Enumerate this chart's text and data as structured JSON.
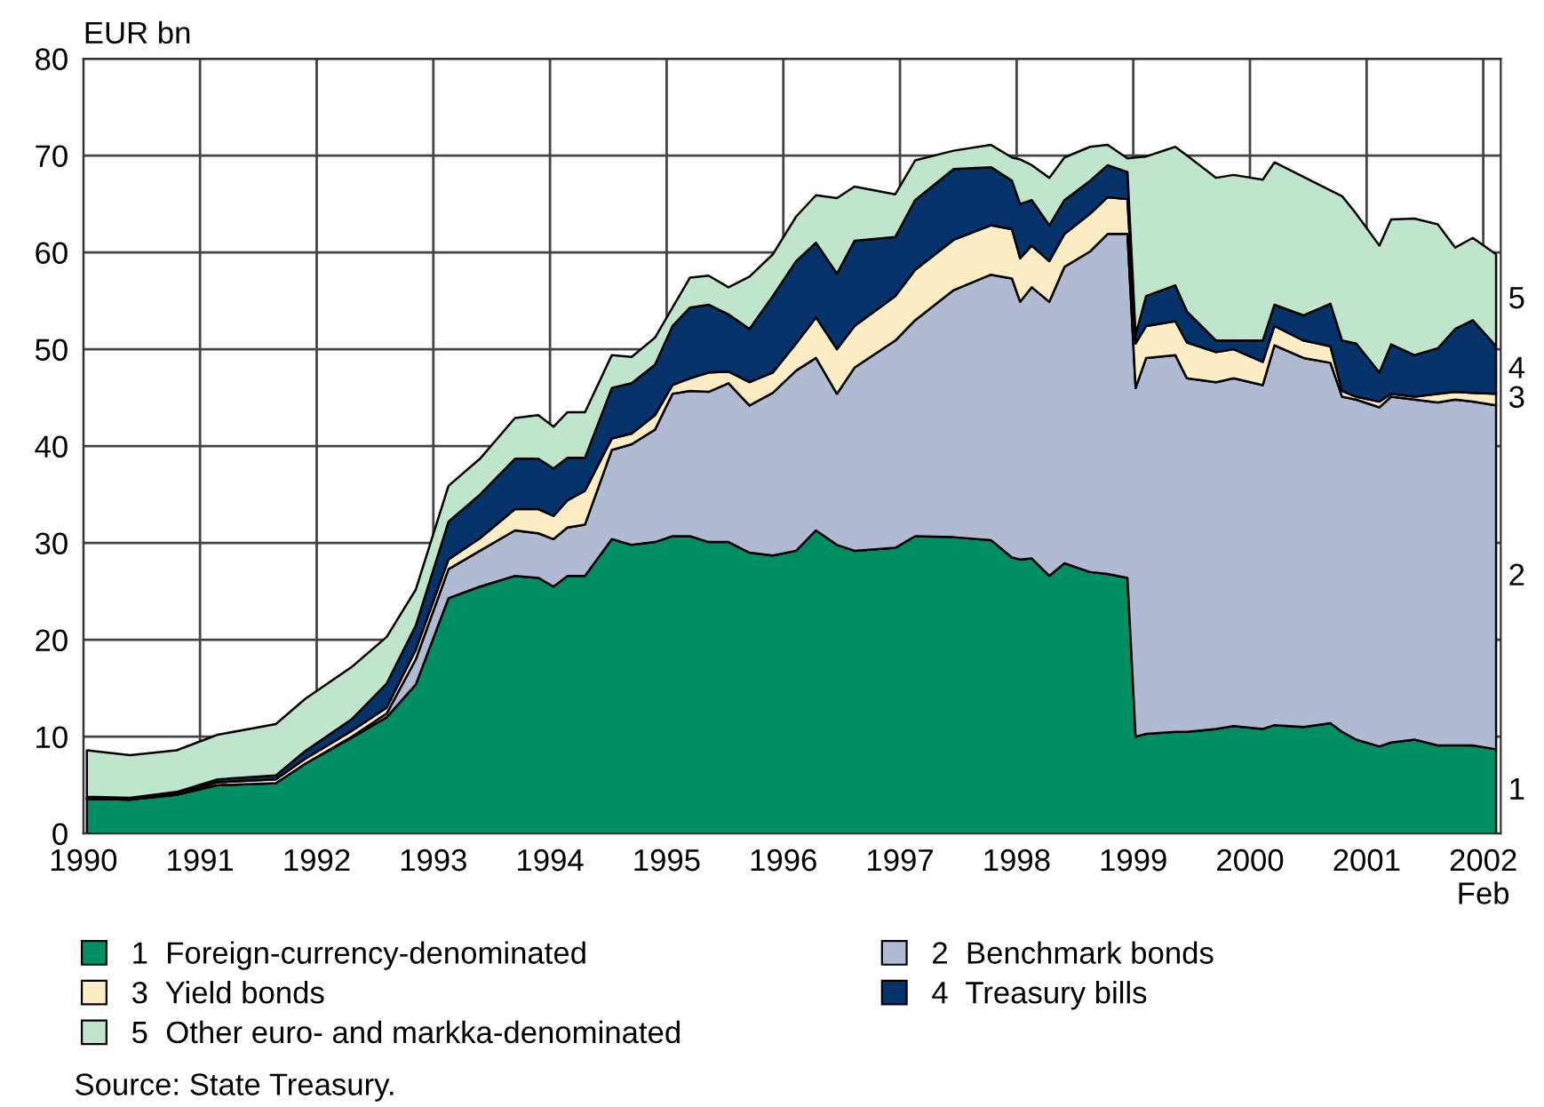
{
  "chart_data": {
    "type": "area",
    "stacked": true,
    "ylabel": "EUR bn",
    "x": [
      1990.03,
      1990.4,
      1990.8,
      1991.15,
      1991.65,
      1991.9,
      1992.3,
      1992.6,
      1992.85,
      1993.13,
      1993.4,
      1993.7,
      1993.9,
      1994.03,
      1994.15,
      1994.3,
      1994.53,
      1994.7,
      1994.9,
      1995.05,
      1995.2,
      1995.36,
      1995.53,
      1995.71,
      1995.91,
      1996.11,
      1996.28,
      1996.46,
      1996.61,
      1996.96,
      1997.13,
      1997.46,
      1997.78,
      1997.96,
      1998.03,
      1998.13,
      1998.28,
      1998.41,
      1998.63,
      1998.78,
      1998.95,
      1999.02,
      1999.11,
      1999.36,
      1999.46,
      1999.71,
      1999.86,
      2000.11,
      2000.21,
      2000.46,
      2000.69,
      2000.79,
      2000.91,
      2001.11,
      2001.21,
      2001.41,
      2001.61,
      2001.76,
      2001.91,
      2002.11
    ],
    "series": [
      {
        "name": "1  Foreign-currency-denominated",
        "color": "#008f62",
        "values": [
          3.6,
          3.5,
          4.0,
          5.0,
          5.2,
          7.2,
          9.9,
          12.0,
          15.4,
          24.3,
          25.5,
          26.6,
          26.4,
          25.5,
          26.6,
          26.6,
          30.4,
          29.8,
          30.1,
          30.7,
          30.7,
          30.1,
          30.1,
          29.0,
          28.7,
          29.2,
          31.3,
          29.8,
          29.2,
          29.5,
          30.7,
          30.6,
          30.3,
          28.5,
          28.3,
          28.4,
          26.6,
          27.9,
          27.0,
          26.8,
          26.4,
          10.0,
          10.3,
          10.5,
          10.5,
          10.8,
          11.1,
          10.8,
          11.2,
          11.0,
          11.4,
          10.5,
          9.7,
          9.0,
          9.4,
          9.7,
          9.1,
          9.1,
          9.1,
          8.7
        ]
      },
      {
        "name": "2  Benchmark bonds",
        "color": "#b1bad3",
        "values": [
          0,
          0,
          0,
          0,
          0,
          0,
          0.1,
          0.4,
          2.6,
          3.0,
          3.7,
          4.7,
          4.6,
          4.9,
          5.0,
          5.3,
          9.2,
          10.4,
          11.6,
          14.7,
          15.0,
          15.5,
          16.4,
          15.2,
          16.8,
          18.6,
          17.8,
          15.6,
          18.9,
          21.4,
          22.3,
          25.5,
          27.4,
          28.8,
          26.6,
          28.0,
          28.3,
          30.6,
          33.1,
          35.1,
          35.5,
          36.0,
          38.8,
          38.9,
          36.5,
          35.8,
          35.9,
          35.5,
          39.2,
          38.1,
          37.2,
          34.6,
          35.1,
          35.0,
          35.7,
          35.1,
          35.4,
          35.7,
          35.5,
          35.5
        ]
      },
      {
        "name": "3  Yield bonds",
        "color": "#fdedc5",
        "values": [
          0,
          0,
          0.1,
          0.3,
          0.4,
          0.5,
          0.6,
          0.6,
          1.0,
          1.0,
          1.3,
          2.2,
          2.5,
          2.4,
          2.8,
          3.5,
          1.2,
          1.1,
          1.5,
          0.9,
          1.3,
          2.0,
          1.2,
          2.4,
          2.1,
          2.8,
          4.2,
          4.6,
          4.3,
          4.6,
          5.2,
          5.2,
          5.1,
          5.1,
          4.5,
          4.3,
          4.2,
          3.4,
          3.9,
          3.8,
          3.6,
          4.6,
          3.3,
          3.5,
          3.7,
          3.1,
          3.0,
          2.4,
          2.0,
          1.8,
          1.7,
          0.6,
          0.3,
          0.6,
          0.3,
          0.3,
          0.9,
          0.8,
          0.9,
          1.2
        ]
      },
      {
        "name": "4  Treasury bills",
        "color": "#07336b",
        "values": [
          0.2,
          0.2,
          0.2,
          0.3,
          0.4,
          0.8,
          1.2,
          2.5,
          2.5,
          3.9,
          4.5,
          5.2,
          5.2,
          4.9,
          4.4,
          3.4,
          5.2,
          5.2,
          5.2,
          6.1,
          7.3,
          7.0,
          5.9,
          5.5,
          7.9,
          8.5,
          7.7,
          7.8,
          8.8,
          6.1,
          7.2,
          7.3,
          6.0,
          5.0,
          5.6,
          4.7,
          3.7,
          3.5,
          3.4,
          3.3,
          2.8,
          0.9,
          3.1,
          3.7,
          3.2,
          1.2,
          0.9,
          2.2,
          2.2,
          2.6,
          4.4,
          5.2,
          5.5,
          3.0,
          5.1,
          4.3,
          4.7,
          6.5,
          7.5,
          4.9
        ]
      },
      {
        "name": "5  Other euro- and markka-denominated",
        "color": "#bfe5cd",
        "values": [
          4.8,
          4.4,
          4.3,
          4.6,
          5.3,
          5.4,
          5.4,
          4.8,
          3.7,
          3.7,
          3.7,
          4.2,
          4.5,
          4.3,
          4.7,
          4.7,
          3.4,
          2.7,
          2.8,
          1.9,
          3.1,
          3.0,
          2.8,
          5.4,
          4.3,
          4.6,
          4.9,
          7.8,
          5.6,
          4.4,
          4.1,
          1.9,
          2.3,
          2.4,
          4.6,
          3.6,
          4.9,
          4.4,
          3.5,
          2.1,
          1.4,
          18.3,
          14.4,
          14.3,
          16.1,
          16.8,
          17.1,
          16.6,
          14.7,
          14.3,
          11.7,
          14.9,
          13.4,
          13.1,
          12.9,
          14.1,
          12.8,
          8.4,
          8.5,
          9.5
        ]
      }
    ],
    "xlim": [
      1990,
      2002.15
    ],
    "xticks": [
      1990,
      1991,
      1992,
      1993,
      1994,
      1995,
      1996,
      1997,
      1998,
      1999,
      2000,
      2001,
      {
        "value": 2002,
        "label": "2002\nFeb"
      }
    ],
    "ylim": [
      0,
      80
    ],
    "yticks": [
      0,
      10,
      20,
      30,
      40,
      50,
      60,
      70,
      80
    ],
    "grid": true,
    "legend": "bottom",
    "annotations": [
      "1",
      "2",
      "3",
      "4",
      "5",
      "Source: State Treasury."
    ]
  }
}
